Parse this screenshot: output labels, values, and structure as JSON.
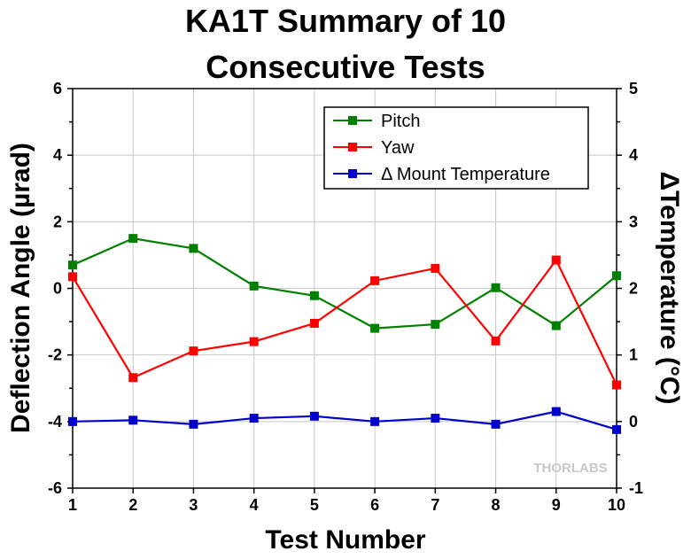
{
  "chart_data": {
    "type": "line",
    "title_lines": [
      "KA1T Summary of 10",
      "Consecutive Tests"
    ],
    "xlabel": "Test Number",
    "ylabel": "Deflection Angle (µrad)",
    "y2label": "ΔTemperature (°C)",
    "x": [
      1,
      2,
      3,
      4,
      5,
      6,
      7,
      8,
      9,
      10
    ],
    "xlim": [
      1,
      10
    ],
    "ylim": [
      -6,
      6
    ],
    "y2lim": [
      -1,
      5
    ],
    "x_ticks": [
      "1",
      "2",
      "3",
      "4",
      "5",
      "6",
      "7",
      "8",
      "9",
      "10"
    ],
    "y_ticks": [
      "6",
      "4",
      "2",
      "0",
      "-2",
      "-4",
      "-6"
    ],
    "y2_ticks": [
      "5",
      "4",
      "3",
      "2",
      "1",
      "0",
      "-1"
    ],
    "grid": true,
    "legend_position": "top-right",
    "series": [
      {
        "name": "Pitch",
        "axis": "left",
        "color": "#008000",
        "values": [
          0.7,
          1.5,
          1.2,
          0.07,
          -0.22,
          -1.2,
          -1.08,
          0.02,
          -1.12,
          0.38
        ]
      },
      {
        "name": "Yaw",
        "axis": "left",
        "color": "#ff0000",
        "values": [
          0.35,
          -2.68,
          -1.88,
          -1.6,
          -1.05,
          0.23,
          0.6,
          -1.58,
          0.85,
          -2.9
        ]
      },
      {
        "name": "Δ Mount Temperature",
        "axis": "right",
        "color": "#0000cc",
        "values": [
          0.0,
          0.02,
          -0.04,
          0.05,
          0.08,
          0.0,
          0.05,
          -0.04,
          0.15,
          -0.12
        ]
      }
    ]
  },
  "watermark": "THORLABS"
}
